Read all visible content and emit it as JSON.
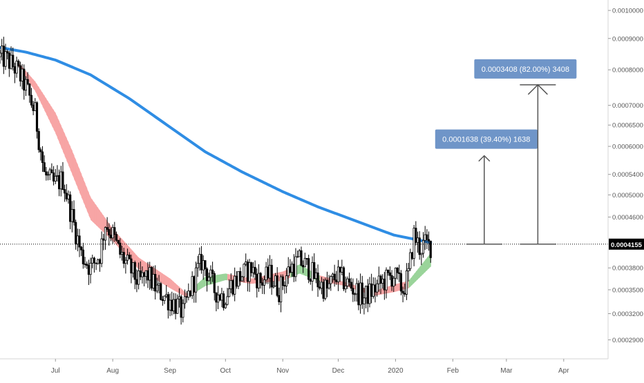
{
  "colors": {
    "background": "#ffffff",
    "up_candle": "#ffffff",
    "down_candle": "#000000",
    "wick": "#000000",
    "long_ma": "#2f8de4",
    "ribbon_bear": "#f7a5a5",
    "ribbon_bull": "#9ad49a",
    "target_label_bg": "#6f95c8",
    "current_price_bg": "#000000",
    "axis_text": "#555555",
    "axis_line": "#d6d6d6"
  },
  "chart_data": {
    "type": "candlestick",
    "scale": "log",
    "grid": false,
    "y_ticks": [
      "0.0010000",
      "0.0009000",
      "0.0008000",
      "0.0007000",
      "0.0006500",
      "0.0006000",
      "0.0005400",
      "0.0005000",
      "0.0004600",
      "0.0003800",
      "0.0003500",
      "0.0003200",
      "0.0002900"
    ],
    "x_ticks": [
      "Jul",
      "Aug",
      "Sep",
      "Oct",
      "Nov",
      "Dec",
      "2020",
      "Feb",
      "Mar",
      "Apr"
    ],
    "ylim": [
      0.00027,
      0.00104
    ],
    "current_price": {
      "label": "0.0004155",
      "value": 0.0004155,
      "line_style": "dotted"
    },
    "projections": [
      {
        "label": "0.0001638 (39.40%) 1638",
        "from_price": 0.0004155,
        "to_price": 0.0005793,
        "date": "2020-02-18"
      },
      {
        "label": "0.0003408 (82.00%) 3408",
        "from_price": 0.0004155,
        "to_price": 0.0007563,
        "date": "2020-03-18"
      }
    ],
    "moving_averages": [
      {
        "kind": "long_ma",
        "points": [
          [
            "2019-06-01",
            0.00087
          ],
          [
            "2019-06-15",
            0.000855
          ],
          [
            "2019-07-01",
            0.00083
          ],
          [
            "2019-07-20",
            0.000785
          ],
          [
            "2019-08-10",
            0.000718
          ],
          [
            "2019-09-01",
            0.000645
          ],
          [
            "2019-09-20",
            0.000588
          ],
          [
            "2019-10-10",
            0.000545
          ],
          [
            "2019-11-01",
            0.000506
          ],
          [
            "2019-11-20",
            0.000478
          ],
          [
            "2019-12-10",
            0.000454
          ],
          [
            "2019-12-31",
            0.00043
          ],
          [
            "2020-01-20",
            0.000418
          ]
        ]
      },
      {
        "kind": "ribbon",
        "upper": [
          [
            "2019-06-10",
            0.000828
          ],
          [
            "2019-06-20",
            0.000765
          ],
          [
            "2019-07-01",
            0.00068
          ],
          [
            "2019-07-10",
            0.00059
          ],
          [
            "2019-07-20",
            0.000495
          ],
          [
            "2019-08-01",
            0.00044
          ],
          [
            "2019-08-15",
            0.000395
          ],
          [
            "2019-09-01",
            0.000365
          ],
          [
            "2019-09-10",
            0.000345
          ],
          [
            "2019-09-20",
            0.000368
          ],
          [
            "2019-10-01",
            0.000372
          ],
          [
            "2019-10-15",
            0.000365
          ],
          [
            "2019-11-01",
            0.000375
          ],
          [
            "2019-11-10",
            0.000385
          ],
          [
            "2019-11-20",
            0.00037
          ],
          [
            "2019-12-05",
            0.00036
          ],
          [
            "2019-12-20",
            0.000348
          ],
          [
            "2019-12-31",
            0.000357
          ],
          [
            "2020-01-08",
            0.000362
          ],
          [
            "2020-01-20",
            0.000402
          ]
        ],
        "lower": [
          [
            "2019-06-10",
            0.000818
          ],
          [
            "2019-06-20",
            0.000738
          ],
          [
            "2019-07-01",
            0.00063
          ],
          [
            "2019-07-10",
            0.00054
          ],
          [
            "2019-07-20",
            0.000455
          ],
          [
            "2019-08-01",
            0.00042
          ],
          [
            "2019-08-15",
            0.000378
          ],
          [
            "2019-09-01",
            0.000352
          ],
          [
            "2019-09-10",
            0.00034
          ],
          [
            "2019-09-20",
            0.000355
          ],
          [
            "2019-10-01",
            0.000363
          ],
          [
            "2019-10-15",
            0.000358
          ],
          [
            "2019-11-01",
            0.000362
          ],
          [
            "2019-11-10",
            0.000372
          ],
          [
            "2019-11-20",
            0.000362
          ],
          [
            "2019-12-05",
            0.000355
          ],
          [
            "2019-12-20",
            0.000342
          ],
          [
            "2019-12-31",
            0.000347
          ],
          [
            "2020-01-08",
            0.000352
          ],
          [
            "2020-01-20",
            0.000382
          ]
        ],
        "bull_ranges": [
          [
            "2019-09-15",
            "2019-10-01"
          ],
          [
            "2019-11-05",
            "2019-11-20"
          ],
          [
            "2020-01-08",
            "2020-01-20"
          ]
        ]
      }
    ],
    "price_path": [
      [
        "2019-06-01",
        0.00084
      ],
      [
        "2019-06-05",
        0.00083
      ],
      [
        "2019-06-10",
        0.0008
      ],
      [
        "2019-06-15",
        0.00075
      ],
      [
        "2019-06-20",
        0.00068
      ],
      [
        "2019-06-25",
        0.00054
      ],
      [
        "2019-06-30",
        0.00052
      ],
      [
        "2019-07-05",
        0.00053
      ],
      [
        "2019-07-10",
        0.00046
      ],
      [
        "2019-07-15",
        0.0004
      ],
      [
        "2019-07-20",
        0.00038
      ],
      [
        "2019-07-25",
        0.0004
      ],
      [
        "2019-07-28",
        0.00045
      ],
      [
        "2019-08-01",
        0.00043
      ],
      [
        "2019-08-05",
        0.0004
      ],
      [
        "2019-08-10",
        0.00038
      ],
      [
        "2019-08-15",
        0.00036
      ],
      [
        "2019-08-20",
        0.00037
      ],
      [
        "2019-08-25",
        0.00035
      ],
      [
        "2019-08-30",
        0.00034
      ],
      [
        "2019-09-05",
        0.00033
      ],
      [
        "2019-09-08",
        0.00032
      ],
      [
        "2019-09-12",
        0.00035
      ],
      [
        "2019-09-15",
        0.00037
      ],
      [
        "2019-09-18",
        0.00039
      ],
      [
        "2019-09-22",
        0.00037
      ],
      [
        "2019-09-25",
        0.00035
      ],
      [
        "2019-09-30",
        0.00034
      ],
      [
        "2019-10-05",
        0.00036
      ],
      [
        "2019-10-10",
        0.00037
      ],
      [
        "2019-10-15",
        0.00038
      ],
      [
        "2019-10-20",
        0.00036
      ],
      [
        "2019-10-25",
        0.00037
      ],
      [
        "2019-10-30",
        0.00035
      ],
      [
        "2019-11-05",
        0.00038
      ],
      [
        "2019-11-10",
        0.00039
      ],
      [
        "2019-11-15",
        0.00038
      ],
      [
        "2019-11-20",
        0.00036
      ],
      [
        "2019-11-25",
        0.00035
      ],
      [
        "2019-11-30",
        0.00037
      ],
      [
        "2019-12-05",
        0.00036
      ],
      [
        "2019-12-10",
        0.00035
      ],
      [
        "2019-12-15",
        0.00034
      ],
      [
        "2019-12-20",
        0.00035
      ],
      [
        "2019-12-25",
        0.00036
      ],
      [
        "2019-12-31",
        0.00037
      ],
      [
        "2020-01-05",
        0.00035
      ],
      [
        "2020-01-08",
        0.00037
      ],
      [
        "2020-01-11",
        0.00043
      ],
      [
        "2020-01-14",
        0.00041
      ],
      [
        "2020-01-17",
        0.000415
      ],
      [
        "2020-01-20",
        0.000413
      ]
    ]
  }
}
